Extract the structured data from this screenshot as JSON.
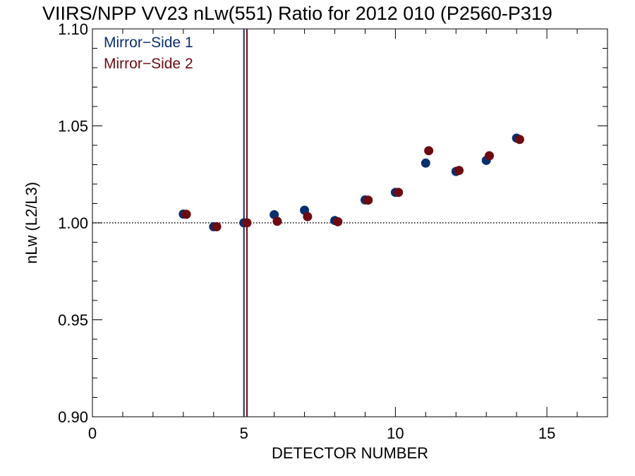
{
  "chart_data": {
    "type": "scatter",
    "title": "VIIRS/NPP VV23 nLw(551) Ratio for 2012 010 (P2560-P319",
    "xlabel": "DETECTOR NUMBER",
    "ylabel": "nLw (L2/L3)",
    "xlim": [
      0,
      17
    ],
    "ylim": [
      0.9,
      1.1
    ],
    "x_ticks": [
      0,
      5,
      10,
      15
    ],
    "x_tick_labels": [
      "0",
      "5",
      "10",
      "15"
    ],
    "y_ticks": [
      0.9,
      0.95,
      1.0,
      1.05,
      1.1
    ],
    "y_tick_labels": [
      "0.90",
      "0.95",
      "1.00",
      "1.05",
      "1.10"
    ],
    "reference_line": 1.0,
    "legend_placement": "top-left",
    "series": [
      {
        "name": "Mirror−Side 1",
        "color": "#0a2f6e",
        "vline_x": 5,
        "x": [
          3,
          4,
          5,
          6,
          7,
          8,
          9,
          10,
          11,
          12,
          13,
          14
        ],
        "y": [
          1.0045,
          0.998,
          1.0,
          1.0042,
          1.0065,
          1.0012,
          1.0118,
          1.0157,
          1.0308,
          1.0265,
          1.0322,
          1.0437
        ]
      },
      {
        "name": "Mirror−Side 2",
        "color": "#6e0a12",
        "vline_x": 5.1,
        "x": [
          3.1,
          4.1,
          5.1,
          6.1,
          7.1,
          8.1,
          9.1,
          10.1,
          11.1,
          12.1,
          13.1,
          14.1
        ],
        "y": [
          1.0044,
          0.998,
          1.0,
          1.0008,
          1.0032,
          1.0006,
          1.0117,
          1.0157,
          1.0372,
          1.027,
          1.0346,
          1.043
        ]
      }
    ]
  }
}
